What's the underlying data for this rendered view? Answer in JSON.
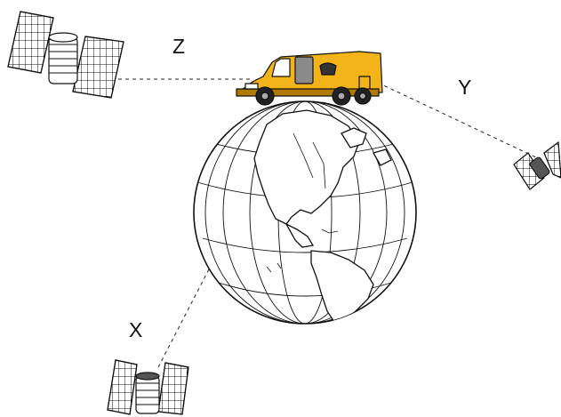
{
  "labels": {
    "z": "Z",
    "y": "Y",
    "x": "X"
  },
  "colors": {
    "van_body": "#F2B418",
    "van_dark": "#B07A00",
    "line": "#111111",
    "background": "#FFFFFF"
  },
  "icons": {
    "earth": "globe-icon",
    "vehicle": "survey-van-icon",
    "satellites": [
      "satellite-icon",
      "satellite-icon",
      "satellite-icon"
    ]
  }
}
